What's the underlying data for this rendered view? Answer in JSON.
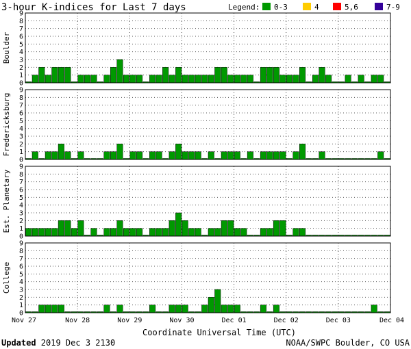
{
  "chart_data": {
    "type": "bar",
    "title": "3-hour K-indices for Last 7 days",
    "legend_label": "Legend:",
    "legend": [
      {
        "label": "0-3",
        "color": "#009900"
      },
      {
        "label": "4",
        "color": "#ffcc00"
      },
      {
        "label": "5,6",
        "color": "#ff0000"
      },
      {
        "label": "7-9",
        "color": "#330099"
      }
    ],
    "ylim": [
      0,
      9
    ],
    "yticks": [
      "0",
      "1",
      "2",
      "3",
      "4",
      "5",
      "6",
      "7",
      "8",
      "9"
    ],
    "xlabel": "Coordinate Universal Time (UTC)",
    "date_labels": [
      "Nov 27",
      "Nov 28",
      "Nov 29",
      "Nov 30",
      "Dec 01",
      "Dec 02",
      "Dec 03",
      "Dec 04"
    ],
    "grid": true,
    "series": [
      {
        "name": "Boulder",
        "values": [
          0,
          1,
          2,
          1,
          2,
          2,
          2,
          0,
          1,
          1,
          1,
          0,
          1,
          2,
          3,
          1,
          1,
          1,
          0,
          1,
          1,
          2,
          1,
          2,
          1,
          1,
          1,
          1,
          1,
          2,
          2,
          1,
          1,
          1,
          1,
          0,
          2,
          2,
          2,
          1,
          1,
          1,
          2,
          0,
          1,
          2,
          1,
          0,
          0,
          1,
          0,
          1,
          0,
          1,
          1,
          0
        ]
      },
      {
        "name": "Fredericksburg",
        "values": [
          0,
          1,
          0,
          1,
          1,
          2,
          1,
          0,
          1,
          0,
          0,
          0,
          1,
          1,
          2,
          0,
          1,
          1,
          0,
          1,
          1,
          0,
          1,
          2,
          1,
          1,
          1,
          0,
          1,
          0,
          1,
          1,
          1,
          0,
          1,
          0,
          1,
          1,
          1,
          1,
          0,
          1,
          2,
          0,
          0,
          1,
          0,
          0,
          0,
          0,
          0,
          0,
          0,
          0,
          1,
          0
        ]
      },
      {
        "name": "Est. Planetary",
        "values": [
          1,
          1,
          1,
          1,
          1,
          2,
          2,
          1,
          2,
          0,
          1,
          0,
          1,
          1,
          2,
          1,
          1,
          1,
          0,
          1,
          1,
          1,
          2,
          3,
          2,
          1,
          1,
          0,
          1,
          1,
          2,
          2,
          1,
          1,
          0,
          0,
          1,
          1,
          2,
          2,
          0,
          1,
          1,
          0,
          0,
          0,
          0,
          0,
          0,
          0,
          0,
          0,
          0,
          0,
          0,
          0
        ]
      },
      {
        "name": "College",
        "values": [
          0,
          0,
          1,
          1,
          1,
          1,
          0,
          0,
          0,
          0,
          0,
          0,
          1,
          0,
          1,
          0,
          0,
          0,
          0,
          1,
          0,
          0,
          1,
          1,
          1,
          0,
          0,
          1,
          2,
          3,
          1,
          1,
          1,
          0,
          0,
          0,
          1,
          0,
          1,
          0,
          0,
          0,
          0,
          0,
          0,
          0,
          0,
          0,
          0,
          0,
          0,
          0,
          0,
          1,
          0,
          0
        ]
      }
    ]
  },
  "footer": {
    "updated_label": "Updated",
    "updated_value": " 2019 Dec  3 2130",
    "source": "NOAA/SWPC Boulder, CO USA"
  }
}
